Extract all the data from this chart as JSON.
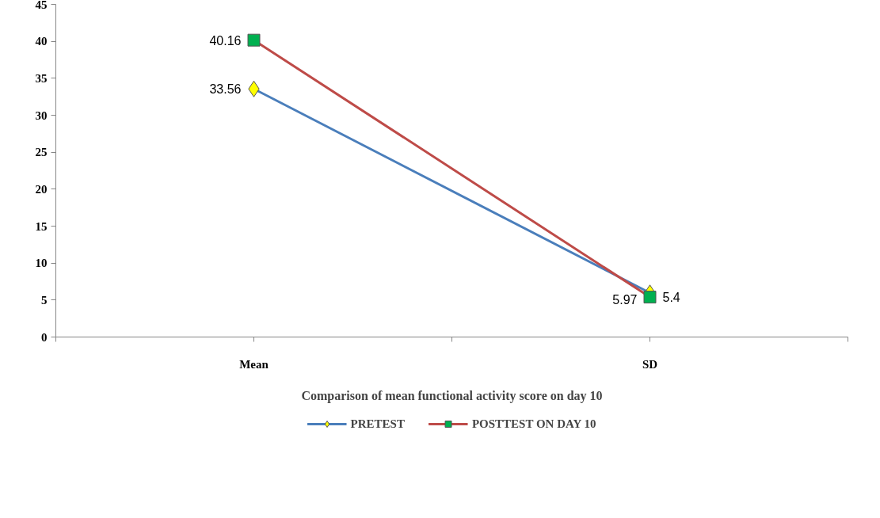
{
  "chart_data": {
    "type": "line",
    "xlabel": "Comparison of mean functional activity score on day 10",
    "categories": [
      "Mean",
      "SD"
    ],
    "series": [
      {
        "name": "PRETEST",
        "color": "#4a7ebb",
        "colors": [
          "#ffff00",
          "#ffff00"
        ],
        "marker": "diamond",
        "values": [
          33.56,
          5.97
        ]
      },
      {
        "name": "POSTTEST ON DAY 10",
        "color": "#be4b48",
        "colors": [
          "#00b050",
          "#00b050"
        ],
        "marker": "square",
        "values": [
          40.16,
          5.4
        ]
      }
    ],
    "ylim": [
      0,
      45
    ],
    "yticks": [
      0,
      5,
      10,
      15,
      20,
      25,
      30,
      35,
      40,
      45
    ],
    "grid": false,
    "legend": "bottom",
    "data_labels": true
  }
}
